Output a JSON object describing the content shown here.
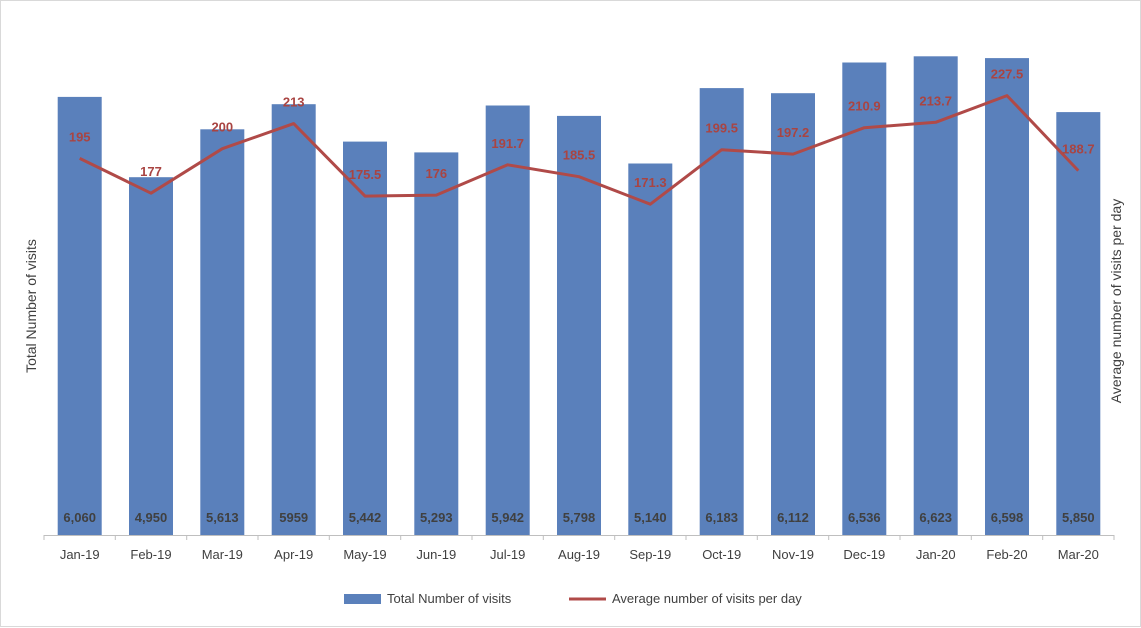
{
  "chart_data": {
    "type": "bar+line",
    "categories": [
      "Jan-19",
      "Feb-19",
      "Mar-19",
      "Apr-19",
      "May-19",
      "Jun-19",
      "Jul-19",
      "Aug-19",
      "Sep-19",
      "Oct-19",
      "Nov-19",
      "Dec-19",
      "Jan-20",
      "Feb-20",
      "Mar-20"
    ],
    "series": [
      {
        "name": "Total Number of visits",
        "type": "bar",
        "axis": "left",
        "color": "#5a80bb",
        "values": [
          6060,
          4950,
          5613,
          5959,
          5442,
          5293,
          5942,
          5798,
          5140,
          6183,
          6112,
          6536,
          6623,
          6598,
          5850
        ],
        "labels": [
          "6,060",
          "4,950",
          "5,613",
          "5959",
          "5,442",
          "5,293",
          "5,942",
          "5,798",
          "5,140",
          "6,183",
          "6,112",
          "6,536",
          "6,623",
          "6,598",
          "5,850"
        ]
      },
      {
        "name": "Average number of visits per day",
        "type": "line",
        "axis": "right",
        "color": "#b04a48",
        "values": [
          195,
          177,
          200,
          213,
          175.5,
          176,
          191.7,
          185.5,
          171.3,
          199.5,
          197.2,
          210.9,
          213.7,
          227.5,
          188.7
        ],
        "labels": [
          "195",
          "177",
          "200",
          "213",
          "175.5",
          "176",
          "191.7",
          "185.5",
          "171.3",
          "199.5",
          "197.2",
          "210.9",
          "213.7",
          "227.5",
          "188.7"
        ]
      }
    ],
    "ylabel_left": "Total Number of visits",
    "ylabel_right": "Average number of visits per day",
    "ylim_left": [
      0,
      7000
    ],
    "ylim_right": [
      0,
      262
    ],
    "grid": false,
    "legend": "bottom"
  }
}
